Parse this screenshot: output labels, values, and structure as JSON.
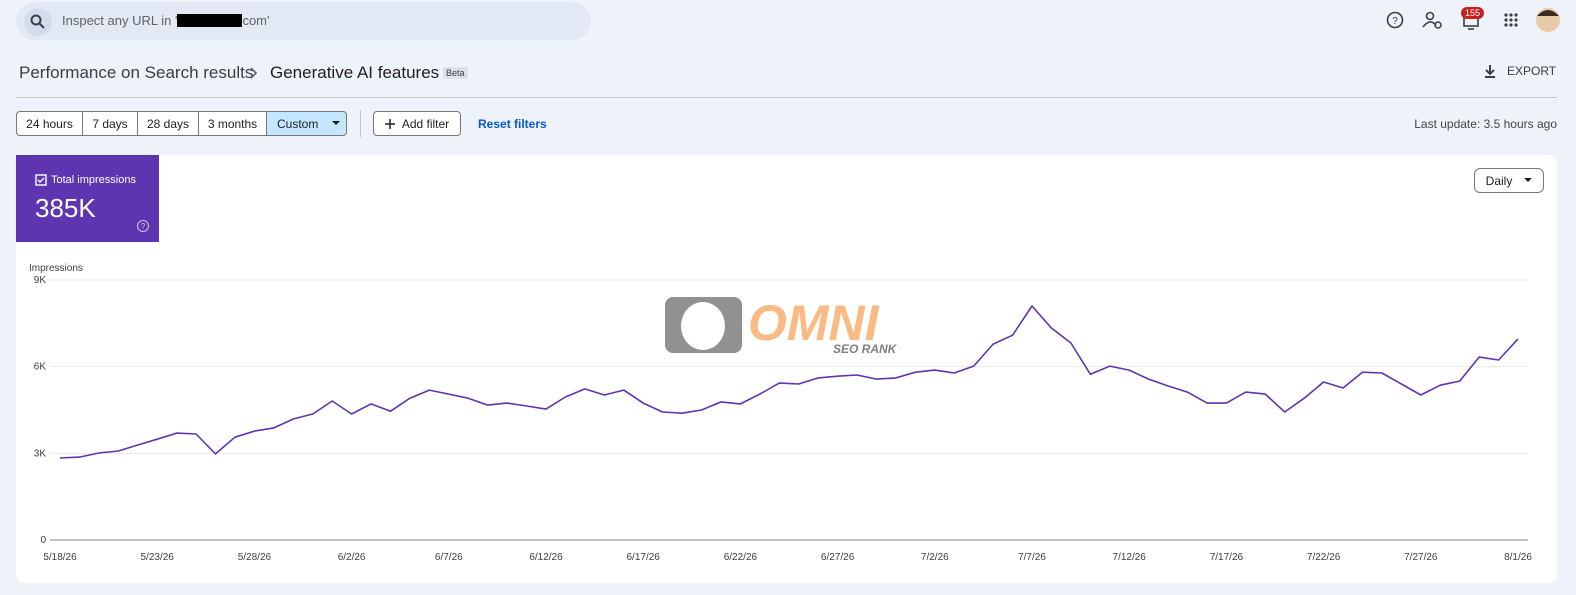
{
  "header": {
    "search_prefix": "Inspect any URL in '",
    "search_suffix": "com'",
    "notification_count": "155",
    "breadcrumb_parent": "Performance on Search results",
    "breadcrumb_current": "Generative AI features",
    "badge": "Beta",
    "export": "EXPORT"
  },
  "toolbar": {
    "ranges": [
      "24 hours",
      "7 days",
      "28 days",
      "3 months",
      "Custom"
    ],
    "add_filter": "Add filter",
    "reset_filters": "Reset filters",
    "last_update": "Last update: 3.5 hours ago"
  },
  "metric_card": {
    "value": "385K"
  },
  "granularity": "Daily",
  "watermark": {
    "brand": "OMNI",
    "tagline": "SEO RANK"
  },
  "chart_data": {
    "type": "line",
    "y_label": "Impressions",
    "x": [
      "5/18/26",
      null,
      null,
      null,
      null,
      "5/23/26",
      null,
      null,
      null,
      null,
      "5/28/26",
      null,
      null,
      null,
      null,
      "6/2/26",
      null,
      null,
      null,
      null,
      "6/7/26",
      null,
      null,
      null,
      null,
      "6/12/26",
      null,
      null,
      null,
      null,
      "6/17/26",
      null,
      null,
      null,
      null,
      "6/22/26",
      null,
      null,
      null,
      null,
      "6/27/26",
      null,
      null,
      null,
      null,
      "7/2/26",
      null,
      null,
      null,
      null,
      "7/7/26",
      null,
      null,
      null,
      null,
      "7/12/26",
      null,
      null,
      null,
      null,
      "7/17/26",
      null,
      null,
      null,
      null,
      "7/22/26",
      null,
      null,
      null,
      null,
      "7/27/26",
      null,
      null,
      null,
      null,
      "8/1/26"
    ],
    "series": [
      {
        "name": "Total impressions",
        "color": "#5e35b1",
        "values": [
          2840,
          2870,
          3010,
          3080,
          3290,
          3490,
          3700,
          3670,
          2980,
          3560,
          3770,
          3880,
          4190,
          4360,
          4810,
          4360,
          4710,
          4460,
          4910,
          5190,
          5050,
          4910,
          4670,
          4740,
          4640,
          4530,
          4950,
          5230,
          5020,
          5190,
          4740,
          4430,
          4390,
          4500,
          4780,
          4710,
          5050,
          5430,
          5400,
          5610,
          5670,
          5710,
          5570,
          5610,
          5810,
          5880,
          5780,
          6020,
          6780,
          7090,
          8100,
          7340,
          6820,
          5740,
          6020,
          5880,
          5570,
          5330,
          5120,
          4740,
          4740,
          5120,
          5050,
          4430,
          4910,
          5470,
          5260,
          5810,
          5780,
          5400,
          5020,
          5360,
          5500,
          6330,
          6230,
          6960
        ]
      }
    ],
    "ylim": [
      0,
      9000
    ],
    "yticks": [
      0,
      {
        "value": 3000,
        "label": "3K"
      },
      {
        "value": 6000,
        "label": "6K"
      },
      {
        "value": 9000,
        "label": "9K"
      }
    ],
    "grid": true
  }
}
